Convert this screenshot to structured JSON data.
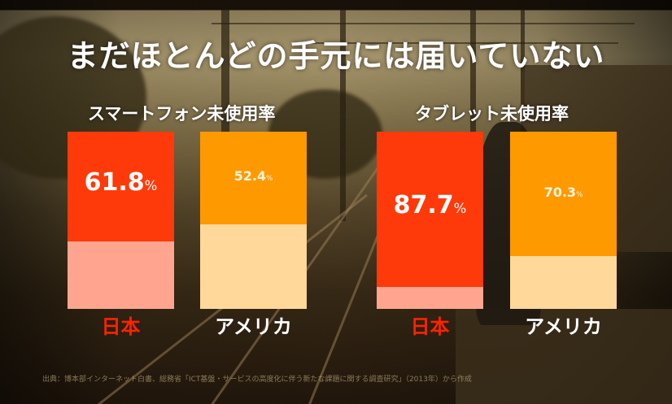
{
  "title": "まだほとんどの手元には届いていない",
  "colors": {
    "japan_used": "#ff3a0a",
    "japan_unused_light": "#ffa58f",
    "usa_used": "#ff9900",
    "usa_unused_light": "#ffd89a",
    "japan_label": "#ff2200",
    "usa_label": "#ffffff"
  },
  "source_text": "出典：博本部インターネット白書、総務省「ICT基盤・サービスの高度化に伴う新たな課題に関する調査研究」（2013年）から作成",
  "chart_data": [
    {
      "type": "bar",
      "title": "スマートフォン未使用率",
      "categories": [
        "日本",
        "アメリカ"
      ],
      "values": [
        61.8,
        52.4
      ],
      "value_labels": [
        "61.8",
        "52.4"
      ],
      "unit": "%",
      "ylim": [
        0,
        100
      ]
    },
    {
      "type": "bar",
      "title": "タブレット未使用率",
      "categories": [
        "日本",
        "アメリカ"
      ],
      "values": [
        87.7,
        70.3
      ],
      "value_labels": [
        "87.7",
        "70.3"
      ],
      "unit": "%",
      "ylim": [
        0,
        100
      ]
    }
  ]
}
